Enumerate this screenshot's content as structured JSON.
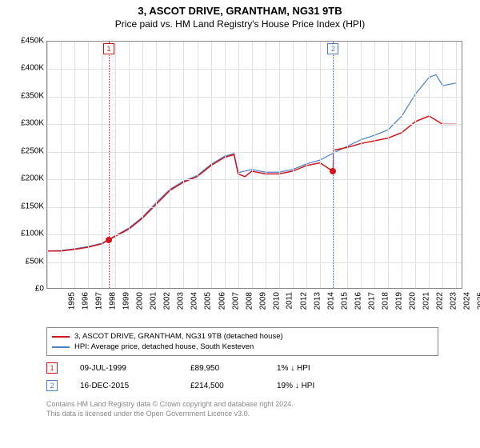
{
  "title_line1": "3, ASCOT DRIVE, GRANTHAM, NG31 9TB",
  "title_line2": "Price paid vs. HM Land Registry's House Price Index (HPI)",
  "chart": {
    "type": "line",
    "background_color": "#ffffff",
    "grid_color": "#e0e0e0",
    "axis_color": "#888888",
    "label_fontsize": 10,
    "x": {
      "min": 1995,
      "max": 2025.5,
      "ticks": [
        1995,
        1996,
        1997,
        1998,
        1999,
        2000,
        2001,
        2002,
        2003,
        2004,
        2005,
        2006,
        2007,
        2008,
        2009,
        2010,
        2011,
        2012,
        2013,
        2014,
        2015,
        2016,
        2017,
        2018,
        2019,
        2020,
        2021,
        2022,
        2023,
        2024,
        2025
      ]
    },
    "y": {
      "min": 0,
      "max": 450000,
      "ticks": [
        0,
        50000,
        100000,
        150000,
        200000,
        250000,
        300000,
        350000,
        400000,
        450000
      ],
      "tick_labels": [
        "£0",
        "£50K",
        "£100K",
        "£150K",
        "£200K",
        "£250K",
        "£300K",
        "£350K",
        "£400K",
        "£450K"
      ]
    },
    "series": [
      {
        "id": "property",
        "label": "3, ASCOT DRIVE, GRANTHAM, NG31 9TB (detached house)",
        "color": "#d4141a",
        "line_width": 1.5,
        "data": [
          [
            1995,
            70000
          ],
          [
            1996,
            70000
          ],
          [
            1997,
            73000
          ],
          [
            1998,
            77000
          ],
          [
            1999,
            83000
          ],
          [
            1999.5,
            89950
          ],
          [
            2000,
            97000
          ],
          [
            2001,
            110000
          ],
          [
            2002,
            130000
          ],
          [
            2003,
            155000
          ],
          [
            2004,
            180000
          ],
          [
            2005,
            195000
          ],
          [
            2006,
            205000
          ],
          [
            2007,
            225000
          ],
          [
            2008,
            240000
          ],
          [
            2008.7,
            245000
          ],
          [
            2009,
            210000
          ],
          [
            2009.5,
            205000
          ],
          [
            2010,
            215000
          ],
          [
            2011,
            210000
          ],
          [
            2012,
            210000
          ],
          [
            2013,
            215000
          ],
          [
            2014,
            225000
          ],
          [
            2015,
            230000
          ],
          [
            2015.96,
            214500
          ],
          [
            2016,
            253000
          ],
          [
            2017,
            258000
          ],
          [
            2018,
            265000
          ],
          [
            2019,
            270000
          ],
          [
            2020,
            275000
          ],
          [
            2021,
            285000
          ],
          [
            2022,
            305000
          ],
          [
            2023,
            315000
          ],
          [
            2024,
            300000
          ],
          [
            2025,
            300000
          ]
        ]
      },
      {
        "id": "hpi",
        "label": "HPI: Average price, detached house, South Kesteven",
        "color": "#4a7ec9",
        "line_width": 1.2,
        "data": [
          [
            1995,
            70000
          ],
          [
            1996,
            71000
          ],
          [
            1997,
            74000
          ],
          [
            1998,
            78000
          ],
          [
            1999,
            84000
          ],
          [
            2000,
            98000
          ],
          [
            2001,
            112000
          ],
          [
            2002,
            132000
          ],
          [
            2003,
            158000
          ],
          [
            2004,
            182000
          ],
          [
            2005,
            197000
          ],
          [
            2006,
            207000
          ],
          [
            2007,
            227000
          ],
          [
            2008,
            242000
          ],
          [
            2008.7,
            247000
          ],
          [
            2009,
            212000
          ],
          [
            2010,
            218000
          ],
          [
            2011,
            213000
          ],
          [
            2012,
            213000
          ],
          [
            2013,
            218000
          ],
          [
            2014,
            228000
          ],
          [
            2015,
            235000
          ],
          [
            2016,
            248000
          ],
          [
            2017,
            260000
          ],
          [
            2018,
            272000
          ],
          [
            2019,
            280000
          ],
          [
            2020,
            290000
          ],
          [
            2021,
            315000
          ],
          [
            2022,
            355000
          ],
          [
            2023,
            385000
          ],
          [
            2023.5,
            390000
          ],
          [
            2024,
            370000
          ],
          [
            2025,
            375000
          ]
        ]
      }
    ],
    "markers": [
      {
        "n": "1",
        "x": 1999.52,
        "color": "#d4141a",
        "dot_y": 89950
      },
      {
        "n": "2",
        "x": 2015.96,
        "color": "#4a7ec9",
        "dot_y": 214500
      }
    ]
  },
  "legend": {
    "rows": [
      {
        "color": "#d4141a",
        "label": "3, ASCOT DRIVE, GRANTHAM, NG31 9TB (detached house)"
      },
      {
        "color": "#4a7ec9",
        "label": "HPI: Average price, detached house, South Kesteven"
      }
    ]
  },
  "sales": [
    {
      "n": "1",
      "color": "#d4141a",
      "date": "09-JUL-1999",
      "price": "£89,950",
      "diff": "1% ↓ HPI"
    },
    {
      "n": "2",
      "color": "#4a7ec9",
      "date": "16-DEC-2015",
      "price": "£214,500",
      "diff": "19% ↓ HPI"
    }
  ],
  "footer_line1": "Contains HM Land Registry data © Crown copyright and database right 2024.",
  "footer_line2": "This data is licensed under the Open Government Licence v3.0."
}
